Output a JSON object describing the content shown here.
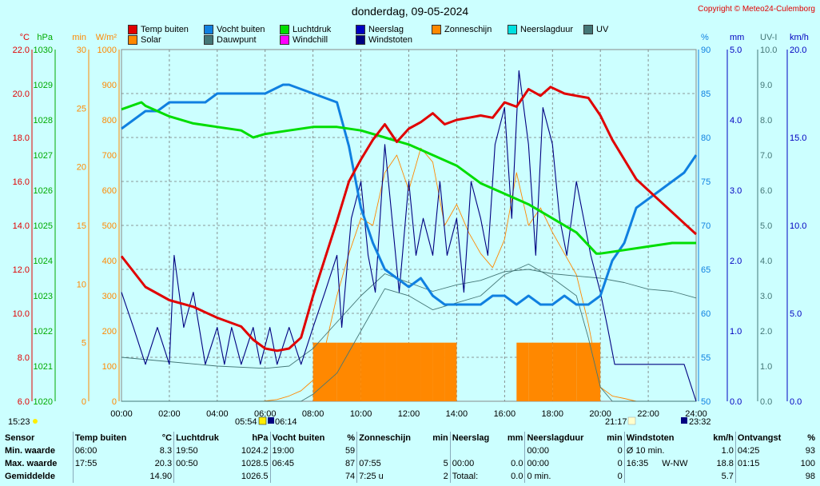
{
  "title": "donderdag, 09-05-2024",
  "copyright": "Copyright © Meteo24-Culemborg",
  "legend": [
    {
      "label": "Temp buiten",
      "color": "#e00000"
    },
    {
      "label": "Vocht buiten",
      "color": "#1080e0"
    },
    {
      "label": "Luchtdruk",
      "color": "#00dd00"
    },
    {
      "label": "Neerslag",
      "color": "#0000c0"
    },
    {
      "label": "Zonneschijn",
      "color": "#ff8800"
    },
    {
      "label": "Neerslagduur",
      "color": "#00e0e0"
    },
    {
      "label": "UV",
      "color": "#447777"
    },
    {
      "label": "Solar",
      "color": "#ff8800"
    },
    {
      "label": "Dauwpunt",
      "color": "#447777"
    },
    {
      "label": "Windchill",
      "color": "#ff00ff"
    },
    {
      "label": "Windstoten",
      "color": "#000080"
    }
  ],
  "chart_data": {
    "type": "line",
    "x_unit": "hour",
    "x_ticks": [
      "00:00",
      "02:00",
      "04:00",
      "06:00",
      "08:00",
      "10:00",
      "12:00",
      "14:00",
      "16:00",
      "18:00",
      "20:00",
      "22:00",
      "24:00"
    ],
    "xlim": [
      0,
      24
    ],
    "axes_left": [
      {
        "unit": "°C",
        "color": "#e00000",
        "ticks": [
          "22.0",
          "20.0",
          "18.0",
          "16.0",
          "14.0",
          "12.0",
          "10.0",
          "8.0",
          "6.0"
        ]
      },
      {
        "unit": "hPa",
        "color": "#00aa00",
        "ticks": [
          "1030",
          "1029",
          "1028",
          "1027",
          "1026",
          "1025",
          "1024",
          "1023",
          "1022",
          "1021",
          "1020"
        ]
      },
      {
        "unit": "min",
        "color": "#ff8800",
        "ticks": [
          "30",
          "25",
          "20",
          "15",
          "10",
          "5",
          "0"
        ]
      },
      {
        "unit": "W/m²",
        "color": "#ff8800",
        "ticks": [
          "1000",
          "900",
          "800",
          "700",
          "600",
          "500",
          "400",
          "300",
          "200",
          "100",
          "0"
        ]
      }
    ],
    "axes_right": [
      {
        "unit": "%",
        "color": "#1080e0",
        "ticks": [
          "90",
          "85",
          "80",
          "75",
          "70",
          "65",
          "60",
          "55",
          "50"
        ]
      },
      {
        "unit": "mm",
        "color": "#0000c0",
        "ticks": [
          "5.0",
          "4.0",
          "3.0",
          "2.0",
          "1.0",
          "0.0"
        ]
      },
      {
        "unit": "UV-I",
        "color": "#447777",
        "ticks": [
          "10.0",
          "9.0",
          "8.0",
          "7.0",
          "6.0",
          "5.0",
          "4.0",
          "3.0",
          "2.0",
          "1.0",
          "0.0"
        ]
      },
      {
        "unit": "km/h",
        "color": "#0000c0",
        "ticks": [
          "20.0",
          "15.0",
          "10.0",
          "5.0",
          "0.0"
        ]
      }
    ],
    "series": [
      {
        "name": "Temp buiten",
        "unit": "°C",
        "color": "#e00000",
        "x": [
          0,
          1,
          2,
          3,
          4,
          5,
          5.5,
          6,
          6.5,
          7,
          7.5,
          8,
          8.5,
          9,
          9.5,
          10,
          10.5,
          11,
          11.5,
          12,
          12.5,
          13,
          13.5,
          14,
          14.5,
          15,
          15.5,
          16,
          16.5,
          17,
          17.5,
          17.92,
          18.5,
          19,
          19.5,
          20,
          20.5,
          21,
          21.5,
          22,
          22.5,
          23,
          23.5,
          24
        ],
        "y": [
          12.6,
          11.2,
          10.6,
          10.3,
          9.8,
          9.4,
          8.8,
          8.4,
          8.3,
          8.4,
          8.9,
          10.8,
          12.5,
          14.2,
          16.0,
          17.0,
          17.9,
          18.6,
          17.8,
          18.4,
          18.7,
          19.1,
          18.6,
          18.8,
          18.9,
          19.0,
          18.9,
          19.6,
          19.4,
          20.2,
          19.9,
          20.3,
          20.0,
          19.9,
          19.8,
          19.0,
          17.9,
          17.0,
          16.1,
          15.6,
          15.1,
          14.6,
          14.1,
          13.6
        ]
      },
      {
        "name": "Vocht buiten",
        "unit": "%",
        "color": "#1080e0",
        "x": [
          0,
          0.5,
          1,
          1.5,
          2,
          2.5,
          3,
          3.5,
          4,
          5,
          6,
          6.75,
          7,
          8,
          9,
          9.5,
          10,
          10.5,
          11,
          11.5,
          12,
          12.5,
          13,
          13.5,
          14,
          14.5,
          15,
          15.5,
          16,
          16.5,
          17,
          17.5,
          18,
          18.5,
          19,
          19.5,
          20,
          20.5,
          21,
          21.5,
          22,
          22.5,
          23,
          23.5,
          24
        ],
        "y": [
          81,
          82,
          83,
          83,
          84,
          84,
          84,
          84,
          85,
          85,
          85,
          86,
          86,
          85,
          84,
          79,
          72,
          68,
          65,
          64,
          63,
          64,
          62,
          61,
          61,
          61,
          61,
          62,
          62,
          61,
          62,
          61,
          61,
          62,
          61,
          61,
          62,
          66,
          68,
          72,
          73,
          74,
          75,
          76,
          78
        ]
      },
      {
        "name": "Luchtdruk",
        "unit": "hPa",
        "color": "#00dd00",
        "x": [
          0,
          0.83,
          1,
          2,
          3,
          4,
          5,
          5.5,
          6,
          7,
          8,
          9,
          10,
          11,
          11.5,
          12,
          13,
          14,
          15,
          16,
          17,
          18,
          19,
          19.83,
          20,
          21,
          22,
          23,
          24
        ],
        "y": [
          1028.3,
          1028.5,
          1028.4,
          1028.1,
          1027.9,
          1027.8,
          1027.7,
          1027.5,
          1027.6,
          1027.7,
          1027.8,
          1027.8,
          1027.7,
          1027.5,
          1027.4,
          1027.3,
          1027.0,
          1026.7,
          1026.2,
          1025.9,
          1025.6,
          1025.2,
          1024.8,
          1024.2,
          1024.2,
          1024.3,
          1024.4,
          1024.5,
          1024.5
        ]
      },
      {
        "name": "Dauwpunt",
        "unit": "°C",
        "color": "#447777",
        "x": [
          0,
          2,
          4,
          6,
          7,
          8,
          9,
          10,
          11,
          12,
          13,
          14,
          15,
          16,
          17,
          18,
          19,
          20,
          21,
          22,
          23,
          24
        ],
        "y": [
          8.0,
          7.8,
          7.6,
          7.5,
          7.6,
          8.4,
          9.6,
          10.8,
          11.8,
          11.4,
          11.0,
          11.3,
          11.5,
          11.9,
          12.0,
          11.8,
          11.7,
          11.6,
          11.4,
          11.1,
          11.0,
          10.7
        ]
      },
      {
        "name": "Solar",
        "unit": "W/m²",
        "color": "#ff8800",
        "x": [
          0,
          5.9,
          6.5,
          7,
          7.5,
          8,
          8.5,
          9,
          9.5,
          10,
          10.5,
          11,
          11.5,
          12,
          12.5,
          13,
          13.5,
          14,
          14.5,
          15,
          15.5,
          16,
          16.5,
          17,
          17.5,
          18,
          18.5,
          19,
          19.5,
          20,
          20.5,
          21,
          21.5,
          24
        ],
        "y": [
          0,
          0,
          5,
          15,
          30,
          60,
          150,
          300,
          420,
          520,
          500,
          650,
          700,
          600,
          720,
          680,
          500,
          560,
          480,
          420,
          380,
          460,
          650,
          500,
          550,
          480,
          420,
          360,
          220,
          40,
          15,
          8,
          0,
          0
        ]
      },
      {
        "name": "UV",
        "unit": "UV-I",
        "color": "#447777",
        "x": [
          0,
          7.5,
          8,
          9,
          10,
          11,
          12,
          13,
          14,
          15,
          16,
          17,
          18,
          19,
          19.5,
          20,
          20.5,
          24
        ],
        "y": [
          0,
          0,
          0.2,
          0.8,
          2.0,
          3.2,
          3.0,
          2.6,
          2.8,
          3.0,
          3.6,
          3.9,
          3.5,
          3.0,
          1.8,
          0.4,
          0,
          0
        ]
      },
      {
        "name": "Windstoten",
        "unit": "km/h",
        "color": "#000080",
        "x": [
          0,
          0.5,
          1,
          1.5,
          2,
          2.2,
          2.6,
          3,
          3.5,
          4,
          4.3,
          4.6,
          5,
          5.5,
          5.8,
          6.2,
          6.5,
          7,
          7.5,
          8,
          8.5,
          9,
          9.2,
          9.6,
          10,
          10.3,
          10.6,
          11,
          11.3,
          11.6,
          12,
          12.3,
          12.6,
          13,
          13.3,
          13.6,
          14,
          14.3,
          14.6,
          15,
          15.3,
          15.6,
          16,
          16.3,
          16.6,
          17,
          17.3,
          17.6,
          18,
          18.3,
          18.6,
          19,
          19.3,
          19.6,
          20,
          20.3,
          20.6,
          21,
          21.5,
          22,
          22.5,
          23,
          23.5,
          24
        ],
        "y": [
          6.2,
          4.2,
          2.1,
          4.2,
          2.1,
          8.3,
          4.2,
          6.2,
          2.1,
          4.2,
          2.1,
          4.2,
          2.1,
          4.2,
          2.1,
          4.2,
          2.1,
          4.2,
          2.1,
          4.2,
          6.2,
          8.3,
          4.2,
          10.4,
          12.5,
          8.3,
          6.2,
          14.6,
          10.4,
          6.2,
          12.5,
          8.3,
          10.4,
          8.3,
          12.5,
          8.3,
          10.4,
          6.2,
          12.5,
          10.4,
          8.3,
          14.6,
          16.7,
          10.4,
          18.8,
          14.6,
          8.3,
          16.7,
          14.6,
          10.4,
          8.3,
          12.5,
          10.4,
          8.3,
          6.2,
          4.2,
          2.1,
          2.1,
          2.1,
          2.1,
          2.1,
          2.1,
          2.1,
          0.0
        ]
      },
      {
        "name": "Zonneschijn",
        "unit": "min",
        "color": "#ff8800",
        "x": [
          8,
          9,
          10,
          11,
          11.5,
          12,
          12.5,
          13,
          13.5,
          14,
          15,
          16.5,
          17,
          18,
          19,
          20
        ],
        "y": [
          5,
          5,
          5,
          5,
          5,
          5,
          5,
          5,
          5,
          0,
          0,
          5,
          5,
          5,
          5,
          0
        ]
      }
    ]
  },
  "time_markers": {
    "left": "15:23",
    "sunrise_a": "05:54",
    "sunrise_b": "06:14",
    "sunset": "21:17",
    "right": "23:32"
  },
  "stats": {
    "row_labels": [
      "Sensor",
      "Min. waarde",
      "Max. waarde",
      "Gemiddelde"
    ],
    "columns": [
      {
        "header": "Temp buiten",
        "unit": "°C",
        "min_time": "06:00",
        "min": "8.3",
        "max_time": "17:55",
        "max": "20.3",
        "avg": "14.90"
      },
      {
        "header": "Luchtdruk",
        "unit": "hPa",
        "min_time": "19:50",
        "min": "1024.2",
        "max_time": "00:50",
        "max": "1028.5",
        "avg": "1026.5"
      },
      {
        "header": "Vocht buiten",
        "unit": "%",
        "min_time": "19:00",
        "min": "59",
        "max_time": "06:45",
        "max": "87",
        "avg": "74"
      },
      {
        "header": "Zonneschijn",
        "unit": "min",
        "min_time": "",
        "min": "",
        "max_time": "07:55",
        "max": "5",
        "avg_label": "7:25 u",
        "avg": "2"
      },
      {
        "header": "Neerslag",
        "unit": "mm",
        "min_time": "",
        "min": "",
        "max_time": "00:00",
        "max": "0.0",
        "avg_label": "Totaal:",
        "avg": "0.0"
      },
      {
        "header": "Neerslagduur",
        "unit": "min",
        "min_time": "00:00",
        "min": "0",
        "max_time": "00:00",
        "max": "0",
        "avg_label": "0 min.",
        "avg": "0"
      },
      {
        "header": "Windstoten",
        "unit": "km/h",
        "min_time": "Ø 10 min.",
        "min": "1.0",
        "max_time": "16:35",
        "max_dir": "W-NW",
        "max": "18.8",
        "avg": "5.7"
      },
      {
        "header": "Ontvangst",
        "unit": "%",
        "min_time": "04:25",
        "min": "93",
        "max_time": "01:15",
        "max": "100",
        "avg": "98"
      }
    ]
  }
}
